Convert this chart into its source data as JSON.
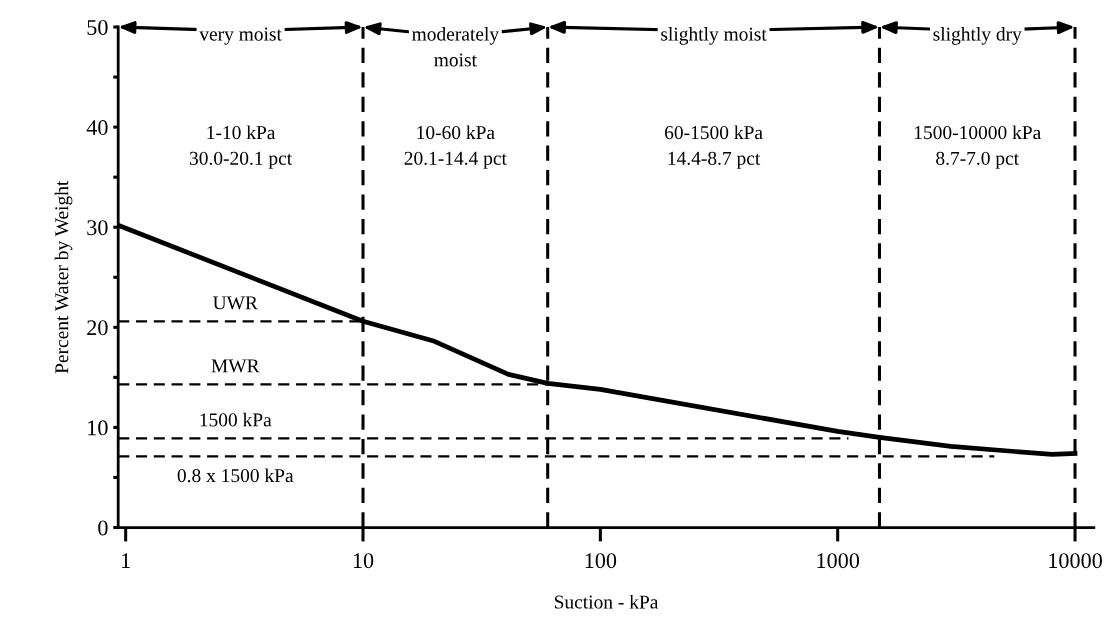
{
  "chart_data": {
    "type": "line",
    "xlabel": "Suction - kPa",
    "ylabel": "Percent Water by Weight",
    "log": "x",
    "xlim": [
      0.93,
      12000
    ],
    "ylim": [
      0,
      50
    ],
    "xticks": [
      1,
      10,
      100,
      1000,
      10000
    ],
    "yticks": [
      0,
      {
        "value": 5,
        "label": null
      },
      10,
      {
        "value": 15,
        "label": null
      },
      20,
      {
        "value": 25,
        "label": null
      },
      30,
      {
        "value": 35,
        "label": null
      },
      40,
      {
        "value": 45,
        "label": null
      },
      50
    ],
    "grid": false,
    "legend": false,
    "marker": "none",
    "series": [
      {
        "color": "#000000",
        "line_style": "solid",
        "x": [
          0.93,
          10,
          20,
          41,
          60,
          100,
          1000,
          1500,
          3000,
          8000,
          10000
        ],
        "values": [
          30.2,
          20.6,
          18.6,
          15.3,
          14.4,
          13.8,
          9.6,
          9.0,
          8.1,
          7.3,
          7.4
        ]
      },
      {
        "name": "UWR",
        "color": "#000000",
        "line_style": "dashed",
        "x": [
          0.93,
          10
        ],
        "values": [
          20.6,
          20.6
        ]
      },
      {
        "name": "MWR",
        "color": "#000000",
        "line_style": "dashed",
        "x": [
          0.93,
          60
        ],
        "values": [
          14.3,
          14.3
        ]
      },
      {
        "name": "1500 kPa",
        "color": "#000000",
        "line_style": "dashed",
        "x": [
          0.93,
          1110
        ],
        "values": [
          8.9,
          8.9
        ]
      },
      {
        "name": "0.8 x 1500 kPa",
        "color": "#000000",
        "line_style": "dashed",
        "x": [
          0.93,
          4570
        ],
        "values": [
          7.1,
          7.1
        ]
      }
    ],
    "ref_lines": [
      {
        "axis": "x",
        "value": 10,
        "line_style": "dashed",
        "color": "#000000"
      },
      {
        "axis": "x",
        "value": 60,
        "line_style": "dashed",
        "color": "#000000"
      },
      {
        "axis": "x",
        "value": 1500,
        "line_style": "dashed",
        "color": "#000000"
      },
      {
        "axis": "x",
        "value": 10000,
        "line_style": "dashed",
        "color": "#000000"
      }
    ],
    "annotations": [
      "very moist",
      "moderately\nmoist",
      "slightly moist",
      "slightly dry",
      "1-10 kPa\n30.0-20.1 pct",
      "10-60 kPa\n20.1-14.4 pct",
      "60-1500 kPa\n14.4-8.7 pct",
      "1500-10000 kPa\n8.7-7.0 pct"
    ]
  }
}
